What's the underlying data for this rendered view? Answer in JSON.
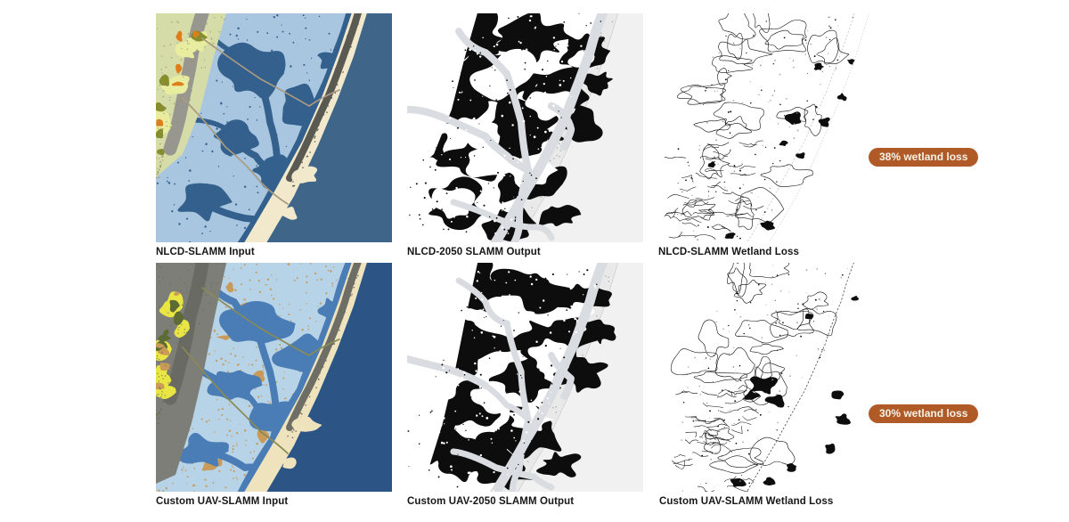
{
  "figure": {
    "description": "SLAMM wetland model comparison figure",
    "background": "#ffffff",
    "label_color": "#161616"
  },
  "panels": [
    {
      "id": "nlcd-input",
      "label": "NLCD-SLAMM Input",
      "type": "input",
      "palette_key": "nlcd_input",
      "seed": 11
    },
    {
      "id": "nlcd-output",
      "label": "NLCD-2050 SLAMM Output",
      "type": "output",
      "palette_key": "bw",
      "seed": 21
    },
    {
      "id": "nlcd-loss",
      "label": "NLCD-SLAMM Wetland Loss",
      "type": "loss",
      "palette_key": "bw",
      "seed": 31,
      "badge": "38% wetland loss"
    },
    {
      "id": "uav-input",
      "label": "Custom UAV-SLAMM Input",
      "type": "input",
      "palette_key": "uav_input",
      "seed": 77
    },
    {
      "id": "uav-output",
      "label": "Custom UAV-2050 SLAMM Output",
      "type": "output",
      "palette_key": "bw",
      "seed": 55
    },
    {
      "id": "uav-loss",
      "label": "Custom UAV-SLAMM Wetland Loss",
      "type": "loss",
      "palette_key": "bw",
      "seed": 63,
      "badge": "30% wetland loss"
    }
  ],
  "badges": {
    "bg": "#b05b27",
    "text_color": "#f8f1e8",
    "row1": "38% wetland loss",
    "row2": "30% wetland loss"
  },
  "palette": {
    "nlcd_input": {
      "marsh": "#a9c6e0",
      "water": "#33608d",
      "ocean": "#3f6689",
      "beach": "#f2e9cd",
      "island_dev": "#5a5a53",
      "upland_base": "#d6dca8",
      "upland_gray": "#97978f",
      "upland_yellow": "#e7ec9e",
      "upland_olive": "#878c2d",
      "upland_orange": "#df7d1b",
      "road": "#a89a80",
      "speckle": "#33608d"
    },
    "uav_input": {
      "marsh": "#b7d3e7",
      "water": "#4a7cb5",
      "ocean": "#2c5586",
      "beach": "#efe3bd",
      "island_dev": "#6e6e66",
      "upland_base": "#7e7e78",
      "upland_gray": "#6a6a64",
      "upland_yellow": "#e9e545",
      "upland_olive": "#5c6b33",
      "upland_orange": "#c99a58",
      "road": "#8a8a55",
      "speckle": "#c99a58"
    },
    "bw": {
      "ink": "#0d0d0d",
      "channel": "#d9dde1",
      "ocean_band": "#f1f1f1",
      "island_fill": "#e9e9e9",
      "island_line": "#c6c6c6",
      "faint": "#a8a8a8"
    }
  }
}
